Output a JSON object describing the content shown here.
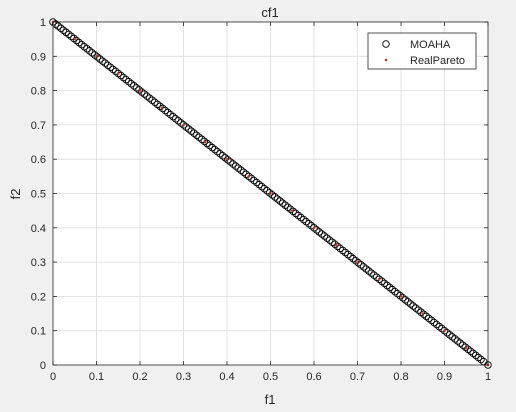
{
  "chart_data": {
    "type": "scatter",
    "title": "cf1",
    "xlabel": "f1",
    "ylabel": "f2",
    "xlim": [
      0,
      1
    ],
    "ylim": [
      0,
      1
    ],
    "xticks": [
      "0",
      "0.1",
      "0.2",
      "0.3",
      "0.4",
      "0.5",
      "0.6",
      "0.7",
      "0.8",
      "0.9",
      "1"
    ],
    "yticks": [
      "0",
      "0.1",
      "0.2",
      "0.3",
      "0.4",
      "0.5",
      "0.6",
      "0.7",
      "0.8",
      "0.9",
      "1"
    ],
    "grid": true,
    "legend_position": "top-right",
    "series": [
      {
        "name": "MOAHA",
        "marker": "open-circle",
        "color": "#000000",
        "x": [
          0.0,
          0.006,
          0.012,
          0.018,
          0.024,
          0.03,
          0.036,
          0.042,
          0.048,
          0.054,
          0.06,
          0.066,
          0.072,
          0.078,
          0.084,
          0.09,
          0.096,
          0.102,
          0.108,
          0.114,
          0.12,
          0.126,
          0.132,
          0.138,
          0.144,
          0.15,
          0.156,
          0.162,
          0.168,
          0.174,
          0.18,
          0.186,
          0.192,
          0.198,
          0.204,
          0.21,
          0.216,
          0.222,
          0.228,
          0.234,
          0.24,
          0.246,
          0.252,
          0.258,
          0.264,
          0.27,
          0.276,
          0.282,
          0.288,
          0.294,
          0.3,
          0.306,
          0.312,
          0.318,
          0.324,
          0.33,
          0.336,
          0.342,
          0.348,
          0.354,
          0.36,
          0.366,
          0.372,
          0.378,
          0.384,
          0.39,
          0.396,
          0.402,
          0.408,
          0.414,
          0.42,
          0.426,
          0.432,
          0.438,
          0.444,
          0.45,
          0.456,
          0.462,
          0.468,
          0.474,
          0.48,
          0.486,
          0.492,
          0.498,
          0.504,
          0.51,
          0.516,
          0.522,
          0.528,
          0.534,
          0.54,
          0.546,
          0.552,
          0.558,
          0.564,
          0.57,
          0.576,
          0.582,
          0.588,
          0.594,
          0.6,
          0.606,
          0.612,
          0.618,
          0.624,
          0.63,
          0.636,
          0.642,
          0.648,
          0.654,
          0.66,
          0.666,
          0.672,
          0.678,
          0.684,
          0.69,
          0.696,
          0.702,
          0.708,
          0.714,
          0.72,
          0.726,
          0.732,
          0.738,
          0.744,
          0.75,
          0.756,
          0.762,
          0.768,
          0.774,
          0.78,
          0.786,
          0.792,
          0.798,
          0.804,
          0.81,
          0.816,
          0.822,
          0.828,
          0.834,
          0.84,
          0.846,
          0.852,
          0.858,
          0.864,
          0.87,
          0.876,
          0.882,
          0.888,
          0.894,
          0.9,
          0.906,
          0.912,
          0.918,
          0.924,
          0.93,
          0.936,
          0.942,
          0.948,
          0.954,
          0.96,
          0.966,
          0.972,
          0.978,
          0.984,
          0.99,
          1.0
        ],
        "y": [
          1.0,
          0.994,
          0.988,
          0.982,
          0.976,
          0.97,
          0.964,
          0.958,
          0.952,
          0.946,
          0.94,
          0.934,
          0.928,
          0.922,
          0.916,
          0.91,
          0.904,
          0.898,
          0.892,
          0.886,
          0.88,
          0.874,
          0.868,
          0.862,
          0.856,
          0.85,
          0.844,
          0.838,
          0.832,
          0.826,
          0.82,
          0.814,
          0.808,
          0.802,
          0.796,
          0.79,
          0.784,
          0.778,
          0.772,
          0.766,
          0.76,
          0.754,
          0.748,
          0.742,
          0.736,
          0.73,
          0.724,
          0.718,
          0.712,
          0.706,
          0.7,
          0.694,
          0.688,
          0.682,
          0.676,
          0.67,
          0.664,
          0.658,
          0.652,
          0.646,
          0.64,
          0.634,
          0.628,
          0.622,
          0.616,
          0.61,
          0.604,
          0.598,
          0.592,
          0.586,
          0.58,
          0.574,
          0.568,
          0.562,
          0.556,
          0.55,
          0.544,
          0.538,
          0.532,
          0.526,
          0.52,
          0.514,
          0.508,
          0.502,
          0.496,
          0.49,
          0.484,
          0.478,
          0.472,
          0.466,
          0.46,
          0.454,
          0.448,
          0.442,
          0.436,
          0.43,
          0.424,
          0.418,
          0.412,
          0.406,
          0.4,
          0.394,
          0.388,
          0.382,
          0.376,
          0.37,
          0.364,
          0.358,
          0.352,
          0.346,
          0.34,
          0.334,
          0.328,
          0.322,
          0.316,
          0.31,
          0.304,
          0.298,
          0.292,
          0.286,
          0.28,
          0.274,
          0.268,
          0.262,
          0.256,
          0.25,
          0.244,
          0.238,
          0.232,
          0.226,
          0.22,
          0.214,
          0.208,
          0.202,
          0.196,
          0.19,
          0.184,
          0.178,
          0.172,
          0.166,
          0.16,
          0.154,
          0.148,
          0.142,
          0.136,
          0.13,
          0.124,
          0.118,
          0.112,
          0.106,
          0.1,
          0.094,
          0.088,
          0.082,
          0.076,
          0.07,
          0.064,
          0.058,
          0.052,
          0.046,
          0.04,
          0.034,
          0.028,
          0.022,
          0.016,
          0.01,
          0.0
        ]
      },
      {
        "name": "RealPareto",
        "marker": "dot",
        "color": "#c0392b",
        "x": [
          0.0,
          0.05,
          0.1,
          0.15,
          0.2,
          0.25,
          0.3,
          0.35,
          0.4,
          0.45,
          0.5,
          0.55,
          0.6,
          0.65,
          0.7,
          0.75,
          0.8,
          0.85,
          0.9,
          0.95,
          1.0
        ],
        "y": [
          1.0,
          0.95,
          0.9,
          0.85,
          0.8,
          0.75,
          0.7,
          0.65,
          0.6,
          0.55,
          0.5,
          0.45,
          0.4,
          0.35,
          0.3,
          0.25,
          0.2,
          0.15,
          0.1,
          0.05,
          0.0
        ]
      }
    ]
  }
}
